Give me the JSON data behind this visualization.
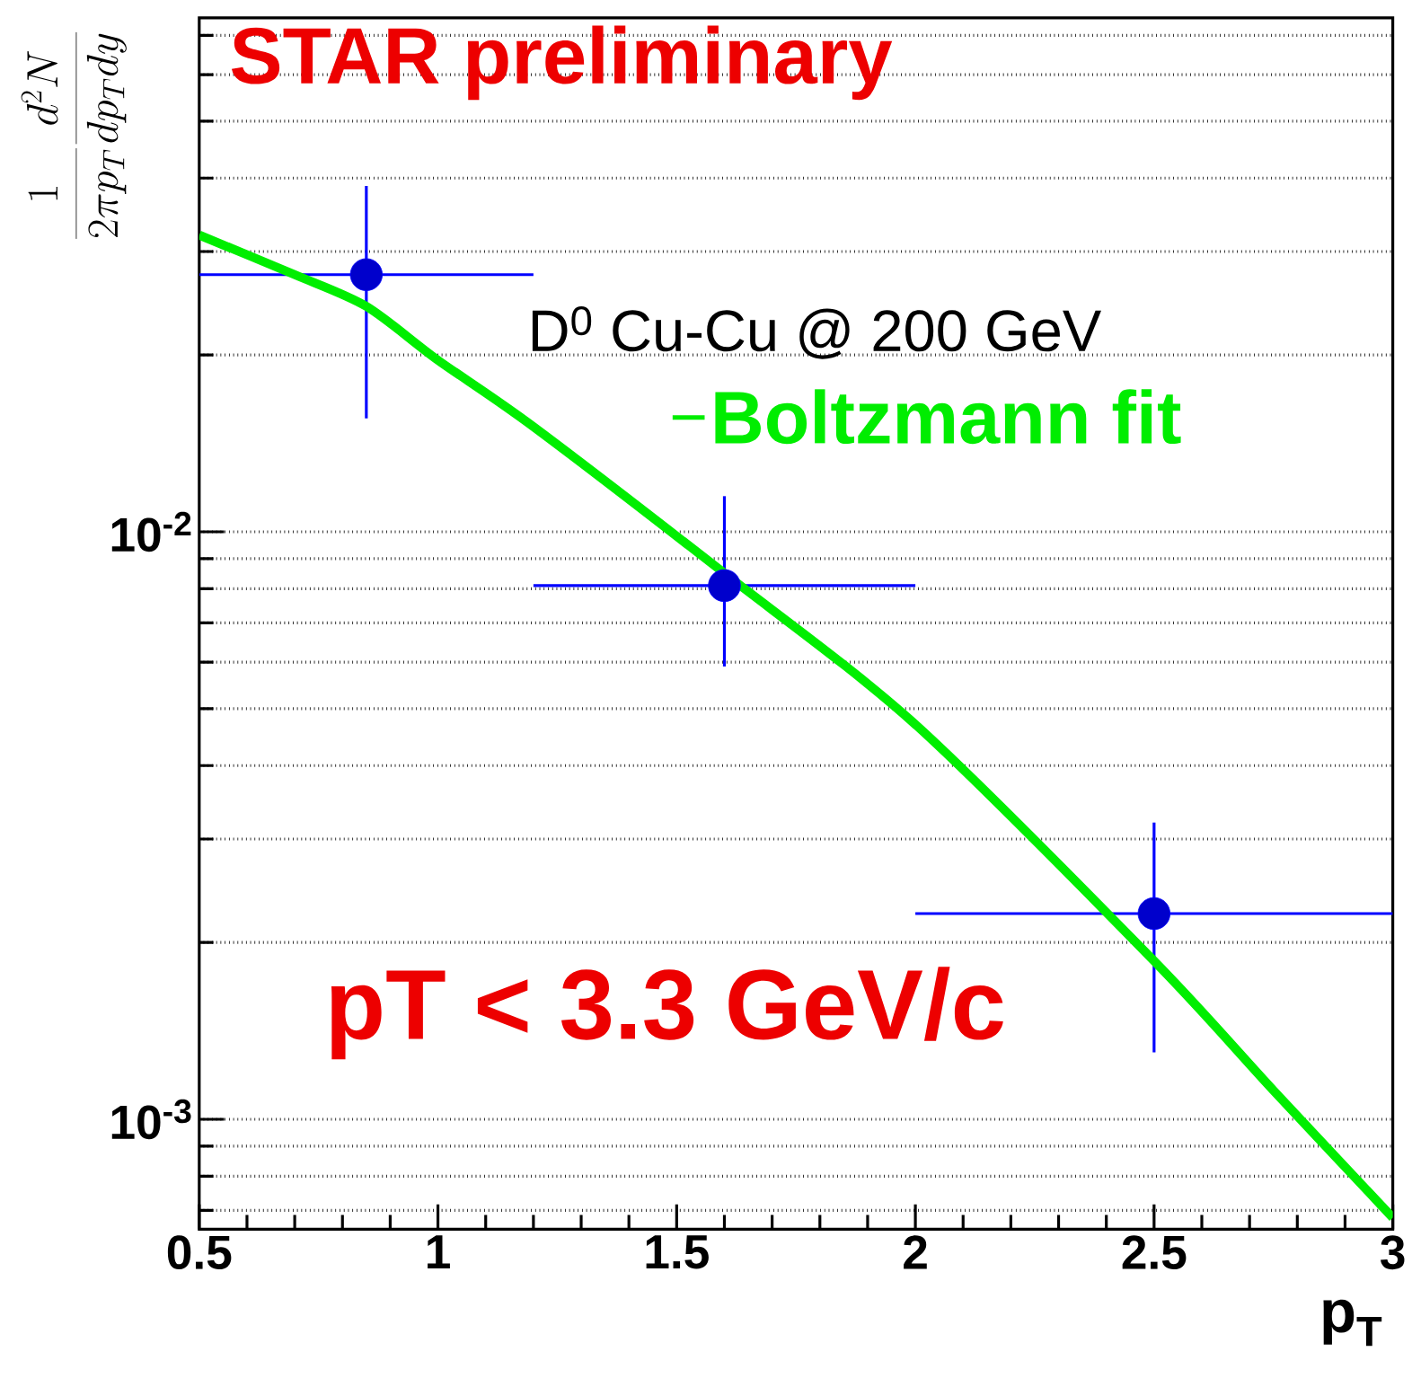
{
  "chart_data": {
    "type": "scatter",
    "title": "STAR preliminary",
    "xlabel": "p$_{T}$",
    "ylabel": "\\frac{1}{2\\pi p_{T}}\\frac{d^{2}N}{dp_{T}dy}",
    "annotations": [
      "D$^{0}$ Cu-Cu @ 200 GeV",
      "pT < 3.3 GeV/c"
    ],
    "series": [
      {
        "type": "scatter",
        "color": "#0000ff",
        "marker": "circle",
        "x": [
          0.85,
          1.6,
          2.5
        ],
        "values": [
          0.0274,
          0.0081,
          0.00224
        ],
        "errors": [
          [
            0.0156,
            0.0388
          ],
          [
            0.0059,
            0.0115
          ],
          [
            0.0013,
            0.0032
          ]
        ],
        "xerrors": [
          [
            0.5,
            1.2
          ],
          [
            1.2,
            2.0
          ],
          [
            2.0,
            3.0
          ]
        ]
      },
      {
        "type": "line",
        "name": "Boltzmann fit",
        "color": "#00ee00",
        "marker": "none",
        "x": [
          0.5,
          0.7,
          0.85,
          1.0,
          1.2,
          1.6,
          2.0,
          2.5,
          2.75,
          3.0
        ],
        "values": [
          0.032,
          0.0274,
          0.0242,
          0.0196,
          0.0151,
          0.0085,
          0.0047,
          0.00186,
          0.00112,
          0.00068
        ]
      }
    ],
    "xlim": [
      0.5,
      3
    ],
    "ylim": [
      0.00065,
      0.075
    ],
    "xticks": [
      0.5,
      1,
      1.5,
      2,
      2.5,
      3
    ],
    "yticks": [
      {
        "value": 0.001,
        "label": "10$^{-3}$"
      },
      {
        "value": 0.01,
        "label": "10$^{-2}$"
      }
    ],
    "log": "y",
    "grid": "y",
    "legend": "top right"
  }
}
